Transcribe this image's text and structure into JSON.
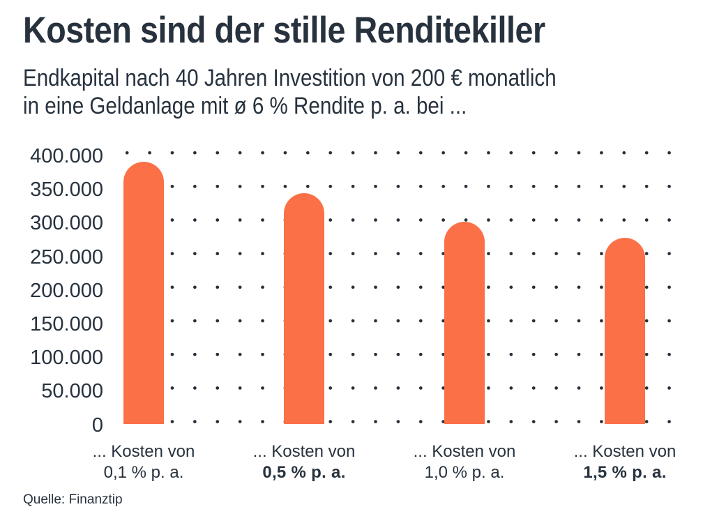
{
  "page": {
    "title": "Kosten sind der stille Renditekiller",
    "subtitle_line1": "Endkapital nach 40 Jahren Investition von 200 € monatlich",
    "subtitle_line2": "in eine Geldanlage mit ø 6 % Rendite p. a. bei ...",
    "source": "Quelle: Finanztip"
  },
  "colors": {
    "text": "#27323E",
    "bar_orange": "#FB7046",
    "grid_dot": "#232E39",
    "background": "#FFFFFF"
  },
  "chart_data": {
    "type": "bar",
    "title": "Kosten sind der stille Renditekiller",
    "subtitle": "Endkapital nach 40 Jahren Investition von 200 € monatlich in eine Geldanlage mit ø 6 % Rendite p. a. bei ...",
    "source": "Quelle: Finanztip",
    "unit": "€",
    "categories": [
      {
        "line1": "... Kosten von",
        "line2": "0,1 % p. a.",
        "bold": false
      },
      {
        "line1": "... Kosten von",
        "line2": "0,5 % p. a.",
        "bold": true
      },
      {
        "line1": "... Kosten von",
        "line2": "1,0 % p. a.",
        "bold": false
      },
      {
        "line1": "... Kosten von",
        "line2": "1,5 % p. a.",
        "bold": true
      }
    ],
    "values": [
      387000,
      340000,
      298000,
      275000
    ],
    "ylim": [
      0,
      400000
    ],
    "ytick_interval": 50000,
    "ytick_labels": [
      "400.000",
      "350.000",
      "300.000",
      "250.000",
      "200.000",
      "150.000",
      "100.000",
      "50.000",
      "0"
    ],
    "grid": "dotted",
    "legend": "none",
    "bar_color": "#FB7046"
  }
}
